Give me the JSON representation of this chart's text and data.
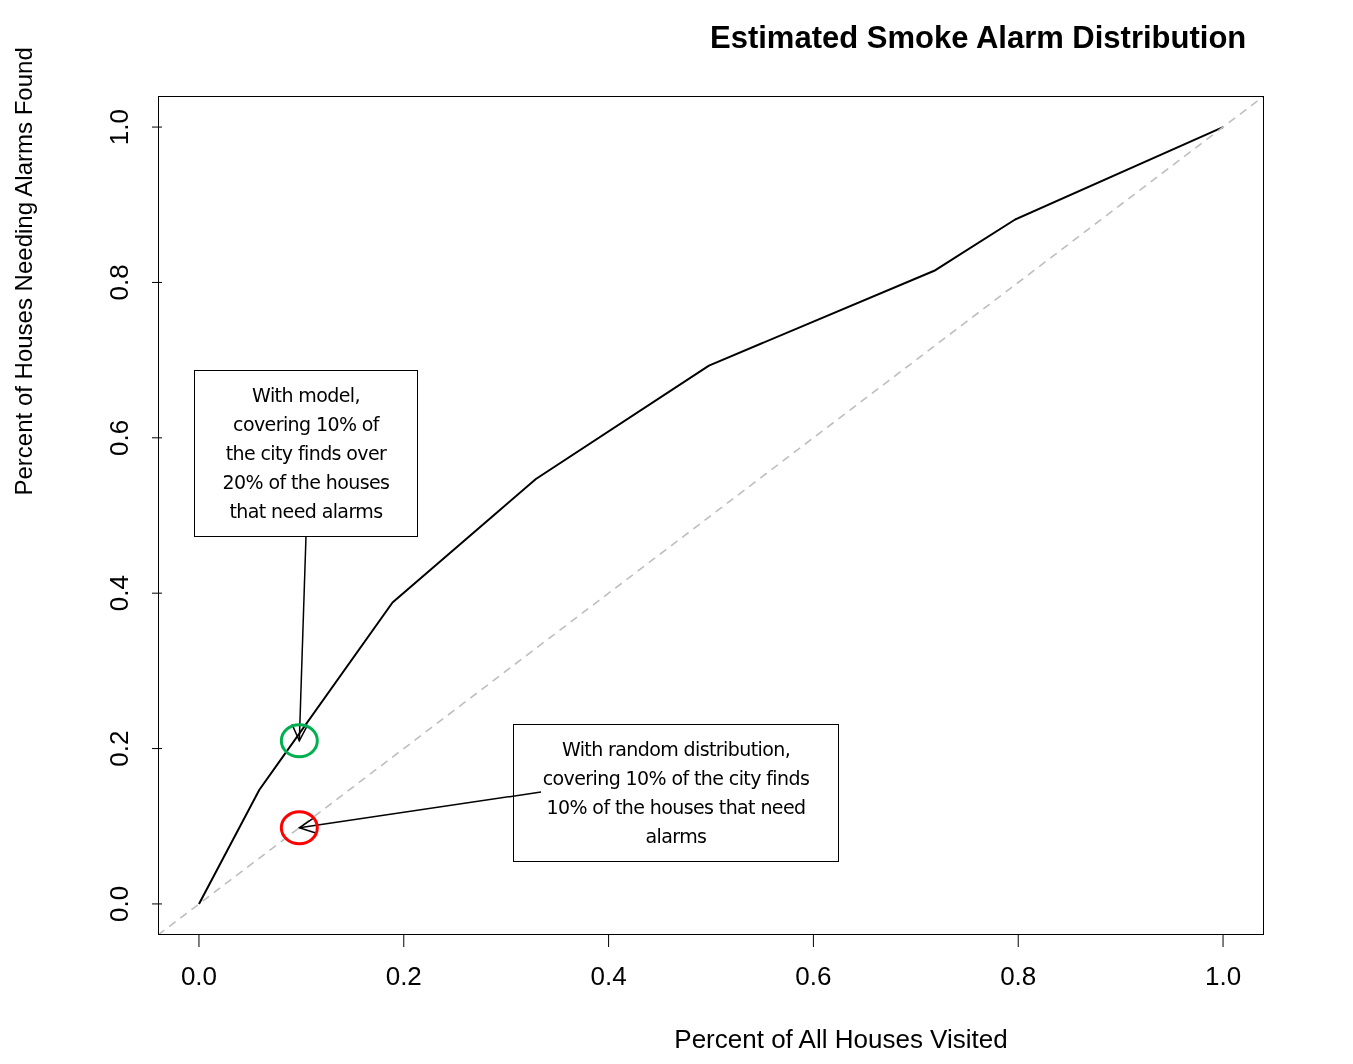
{
  "chart_data": {
    "type": "line",
    "title": "Estimated Smoke Alarm Distribution",
    "xlabel": "Percent of All Houses Visited",
    "ylabel": "Percent of Houses Needing Alarms Found",
    "xlim": [
      -0.04,
      1.04
    ],
    "ylim": [
      -0.04,
      1.04
    ],
    "xticks": [
      {
        "value": 0,
        "label": "0.0"
      },
      {
        "value": 0.2,
        "label": "0.2"
      },
      {
        "value": 0.4,
        "label": "0.4"
      },
      {
        "value": 0.6,
        "label": "0.6"
      },
      {
        "value": 0.8,
        "label": "0.8"
      },
      {
        "value": 1,
        "label": "1.0"
      }
    ],
    "yticks": [
      {
        "value": 0,
        "label": "0.0"
      },
      {
        "value": 0.2,
        "label": "0.2"
      },
      {
        "value": 0.4,
        "label": "0.4"
      },
      {
        "value": 0.6,
        "label": "0.6"
      },
      {
        "value": 0.8,
        "label": "0.8"
      },
      {
        "value": 1,
        "label": "1.0"
      }
    ],
    "marker": "none",
    "series": [
      {
        "color": "#000000",
        "line_style": "solid",
        "x": [
          0,
          0.059,
          0.189,
          0.329,
          0.498,
          0.718,
          0.797,
          1.0
        ],
        "values": [
          0,
          0.147,
          0.388,
          0.547,
          0.693,
          0.815,
          0.881,
          1.0
        ]
      },
      {
        "color": "#bebebe",
        "line_style": "dashed",
        "x": [
          -0.04,
          1.04
        ],
        "values": [
          -0.04,
          1.04
        ]
      }
    ],
    "annotations": [
      {
        "text": "With model, covering 10% of the city finds over 20% of the houses that need alarms",
        "x": 0.098,
        "y": 0.21
      },
      {
        "text": "With random distribution, covering 10% of the city finds 10% of the houses that need alarms",
        "x": 0.098,
        "y": 0.098
      }
    ]
  }
}
